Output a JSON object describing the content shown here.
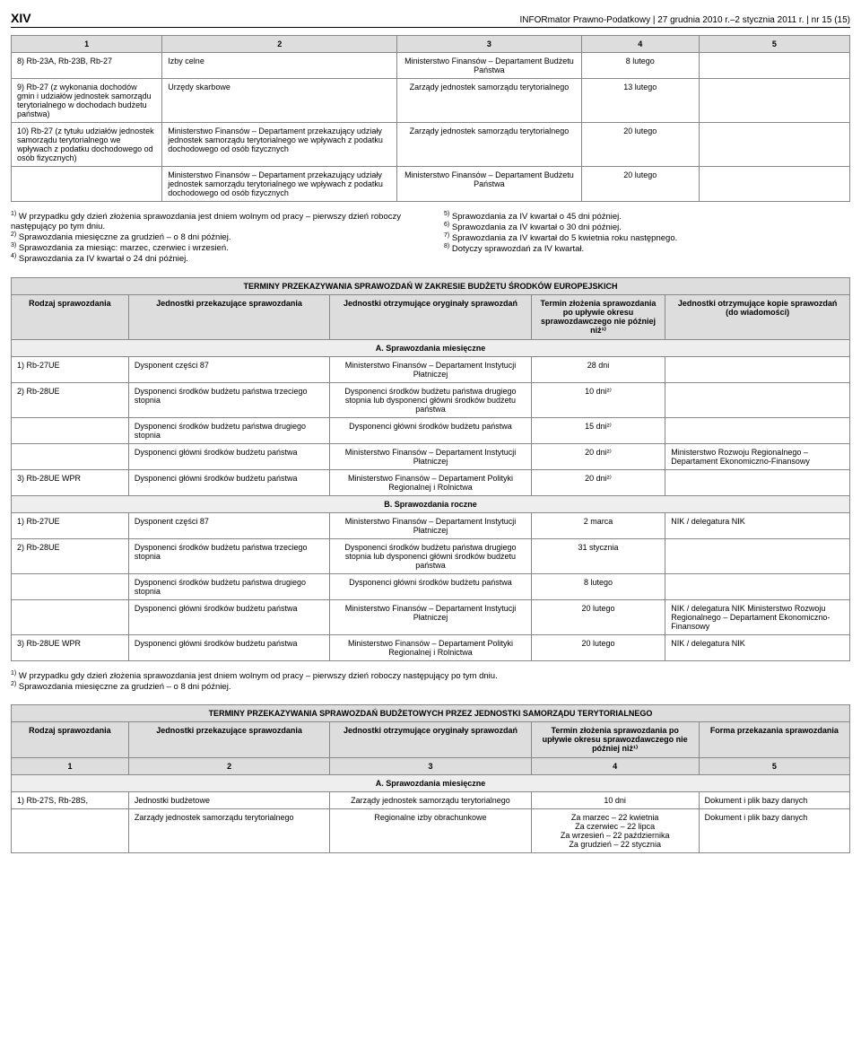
{
  "page": {
    "num": "XIV",
    "mid": "INFORmator Prawno-Podatkowy | 27 grudnia 2010 r.–2 stycznia 2011 r. | nr 15 (15)"
  },
  "t1": {
    "cols": [
      "1",
      "2",
      "3",
      "4",
      "5"
    ],
    "rows": [
      [
        "8) Rb-23A, Rb-23B, Rb-27",
        "Izby celne",
        "Ministerstwo Finansów – Departament Budżetu Państwa",
        "8 lutego",
        ""
      ],
      [
        "9) Rb-27 (z wykonania dochodów gmin i udziałów jednostek samorządu terytorialnego w dochodach budżetu państwa)",
        "Urzędy skarbowe",
        "Zarządy jednostek samorządu terytorialnego",
        "13 lutego",
        ""
      ],
      [
        "10) Rb-27 (z tytułu udziałów jednostek samorządu terytorialnego we wpływach z podatku dochodowego od osób fizycznych)",
        "Ministerstwo Finansów – Departament przekazujący udziały jednostek samorządu terytorialnego we wpływach z podatku dochodowego od osób fizycznych",
        "Zarządy jednostek samorządu terytorialnego",
        "20 lutego",
        ""
      ],
      [
        "",
        "Ministerstwo Finansów – Departament przekazujący udziały jednostek samorządu terytorialnego we wpływach z podatku dochodowego od osób fizycznych",
        "Ministerstwo Finansów – Departament Budżetu Państwa",
        "20 lutego",
        ""
      ]
    ]
  },
  "fn1": {
    "left": [
      "1) W przypadku gdy dzień złożenia sprawozdania jest dniem wolnym od pracy – pierwszy dzień roboczy następujący po tym dniu.",
      "2) Sprawozdania miesięczne za grudzień – o 8 dni później.",
      "3) Sprawozdania za miesiąc: marzec, czerwiec i wrzesień.",
      "4) Sprawozdania za IV kwartał o 24 dni później."
    ],
    "right": [
      "5) Sprawozdania za IV kwartał o 45 dni później.",
      "6) Sprawozdania za IV kwartał o 30 dni później.",
      "7) Sprawozdania za IV kwartał do 5 kwietnia roku następnego.",
      "8) Dotyczy sprawozdań za IV kwartał."
    ]
  },
  "t2": {
    "title": "TERMINY PRZEKAZYWANIA SPRAWOZDAŃ W ZAKRESIE BUDŻETU ŚRODKÓW EUROPEJSKICH",
    "hdr": [
      "Rodzaj sprawozdania",
      "Jednostki przekazujące sprawozdania",
      "Jednostki otrzymujące oryginały sprawozdań",
      "Termin złożenia sprawozdania po upływie okresu sprawozdawczego nie później niż¹⁾",
      "Jednostki otrzymujące kopie sprawozdań (do wiadomości)"
    ],
    "secA": "A. Sprawozdania miesięczne",
    "rowsA": [
      [
        "1) Rb-27UE",
        "Dysponent części 87",
        "Ministerstwo Finansów – Departament Instytucji Płatniczej",
        "28 dni",
        ""
      ],
      [
        "2) Rb-28UE",
        "Dysponenci środków budżetu państwa trzeciego stopnia",
        "Dysponenci środków budżetu państwa drugiego stopnia lub dysponenci główni środków budżetu państwa",
        "10 dni²⁾",
        ""
      ],
      [
        "",
        "Dysponenci środków budżetu państwa drugiego stopnia",
        "Dysponenci główni środków budżetu państwa",
        "15 dni²⁾",
        ""
      ],
      [
        "",
        "Dysponenci główni środków budżetu państwa",
        "Ministerstwo Finansów – Departament Instytucji Płatniczej",
        "20 dni²⁾",
        "Ministerstwo Rozwoju Regionalnego – Departament Ekonomiczno-Finansowy"
      ],
      [
        "3) Rb-28UE WPR",
        "Dysponenci główni środków budżetu państwa",
        "Ministerstwo Finansów – Departament Polityki Regionalnej i Rolnictwa",
        "20 dni²⁾",
        ""
      ]
    ],
    "secB": "B. Sprawozdania roczne",
    "rowsB": [
      [
        "1) Rb-27UE",
        "Dysponent części 87",
        "Ministerstwo Finansów – Departament Instytucji Płatniczej",
        "2 marca",
        "NIK / delegatura NIK"
      ],
      [
        "2) Rb-28UE",
        "Dysponenci środków budżetu państwa trzeciego stopnia",
        "Dysponenci środków budżetu państwa drugiego stopnia lub dysponenci główni środków budżetu państwa",
        "31 stycznia",
        ""
      ],
      [
        "",
        "Dysponenci środków budżetu państwa drugiego stopnia",
        "Dysponenci główni środków budżetu państwa",
        "8 lutego",
        ""
      ],
      [
        "",
        "Dysponenci główni środków budżetu państwa",
        "Ministerstwo Finansów – Departament Instytucji Płatniczej",
        "20 lutego",
        "NIK / delegatura NIK Ministerstwo Rozwoju Regionalnego – Departament Ekonomiczno-Finansowy"
      ],
      [
        "3) Rb-28UE WPR",
        "Dysponenci główni środków budżetu państwa",
        "Ministerstwo Finansów – Departament Polityki Regionalnej i Rolnictwa",
        "20 lutego",
        "NIK / delegatura NIK"
      ]
    ]
  },
  "fn2": [
    "1) W przypadku gdy dzień złożenia sprawozdania jest dniem wolnym od pracy – pierwszy dzień roboczy następujący po tym dniu.",
    "2) Sprawozdania miesięczne za grudzień – o 8 dni później."
  ],
  "t3": {
    "title": "TERMINY PRZEKAZYWANIA SPRAWOZDAŃ BUDŻETOWYCH PRZEZ JEDNOSTKI SAMORZĄDU TERYTORIALNEGO",
    "hdr": [
      "Rodzaj sprawozdania",
      "Jednostki przekazujące sprawozdania",
      "Jednostki otrzymujące oryginały sprawozdań",
      "Termin złożenia sprawozdania po upływie okresu sprawozdawczego nie później niż¹⁾",
      "Forma przekazania sprawozdania"
    ],
    "cols": [
      "1",
      "2",
      "3",
      "4",
      "5"
    ],
    "secA": "A. Sprawozdania miesięczne",
    "rows": [
      [
        "1) Rb-27S, Rb-28S,",
        "Jednostki budżetowe",
        "Zarządy jednostek samorządu terytorialnego",
        "10 dni",
        "Dokument i plik bazy danych"
      ],
      [
        "",
        "Zarządy jednostek samorządu terytorialnego",
        "Regionalne izby obrachunkowe",
        "Za marzec – 22 kwietnia\nZa czerwiec – 22 lipca\nZa wrzesień – 22 października\nZa grudzień – 22 stycznia",
        "Dokument i plik bazy danych"
      ]
    ]
  }
}
